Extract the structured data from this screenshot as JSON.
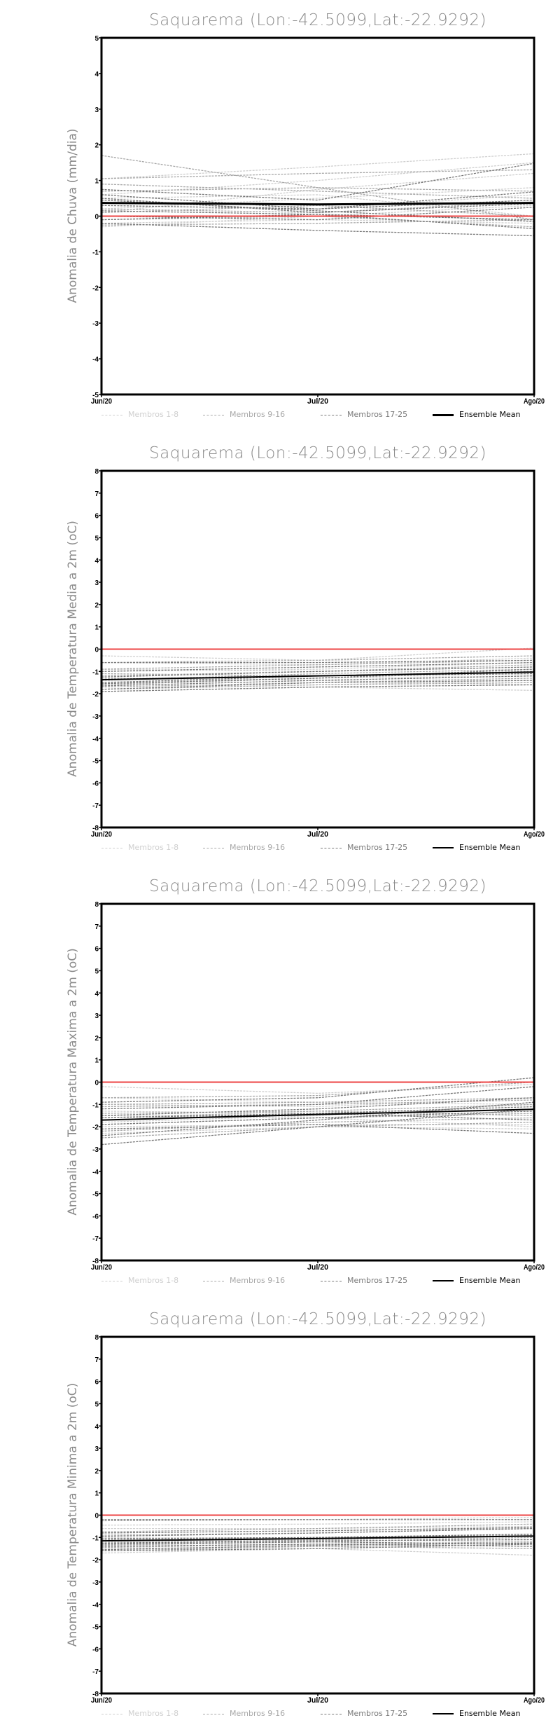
{
  "colors": {
    "members_1_8": "#cfcfcf",
    "members_9_16": "#a8a8a8",
    "members_17_25": "#787878",
    "mean": "#000000",
    "zero": "#ee4444"
  },
  "chart_data": [
    {
      "type": "line",
      "title": "Saquarema (Lon:-42.5099,Lat:-22.9292)",
      "ylabel": "Anomalia de Chuva (mm/dia)",
      "x": [
        "Jun/20",
        "Jul/20",
        "Ago/20"
      ],
      "ylim": [
        -5,
        5
      ],
      "yticks": [
        -5,
        -4,
        -3,
        -2,
        -1,
        0,
        1,
        2,
        3,
        4,
        5
      ],
      "legend": [
        "Membros 1-8",
        "Membros 9-16",
        "Membros 17-25",
        "Ensemble Mean"
      ],
      "mean_bold": true,
      "members": [
        [
          1.05,
          1.38,
          1.75
        ],
        [
          0.6,
          1.0,
          1.5
        ],
        [
          0.2,
          0.5,
          0.8
        ],
        [
          0.1,
          0.75,
          1.2
        ],
        [
          -0.3,
          0.0,
          0.3
        ],
        [
          0.3,
          0.2,
          0.6
        ],
        [
          -0.2,
          -0.1,
          -0.2
        ],
        [
          0.5,
          0.6,
          0.0
        ],
        [
          1.7,
          0.8,
          -0.1
        ],
        [
          1.05,
          1.2,
          1.3
        ],
        [
          0.9,
          0.7,
          0.5
        ],
        [
          0.7,
          0.8,
          0.7
        ],
        [
          0.2,
          0.1,
          0.4
        ],
        [
          -0.1,
          0.0,
          -0.3
        ],
        [
          0.1,
          0.3,
          0.0
        ],
        [
          -0.25,
          -0.2,
          -0.1
        ],
        [
          0.75,
          0.45,
          1.48
        ],
        [
          0.5,
          0.1,
          0.35
        ],
        [
          0.45,
          0.15,
          -0.15
        ],
        [
          0.0,
          -0.1,
          0.25
        ],
        [
          -0.2,
          -0.4,
          -0.55
        ],
        [
          0.15,
          0.05,
          -0.1
        ],
        [
          0.6,
          0.2,
          0.68
        ],
        [
          -0.1,
          0.05,
          -0.35
        ],
        [
          0.3,
          0.2,
          0.45
        ]
      ],
      "mean": [
        0.37,
        0.33,
        0.37
      ]
    },
    {
      "type": "line",
      "title": "Saquarema (Lon:-42.5099,Lat:-22.9292)",
      "ylabel": "Anomalia de Temperatura Media a 2m (oC)",
      "x": [
        "Jun/20",
        "Jul/20",
        "Ago/20"
      ],
      "ylim": [
        -8,
        8
      ],
      "yticks": [
        -8,
        -7,
        -6,
        -5,
        -4,
        -3,
        -2,
        -1,
        0,
        1,
        2,
        3,
        4,
        5,
        6,
        7,
        8
      ],
      "legend": [
        "Membros 1-8",
        "Membros 9-16",
        "Membros 17-25",
        "Ensemble Mean"
      ],
      "mean_bold": false,
      "members": [
        [
          -0.3,
          -0.5,
          0.05
        ],
        [
          -0.6,
          -0.7,
          -0.4
        ],
        [
          -1.0,
          -0.9,
          -0.6
        ],
        [
          -1.5,
          -1.3,
          -1.2
        ],
        [
          -1.8,
          -1.6,
          -1.4
        ],
        [
          -1.9,
          -1.7,
          -1.85
        ],
        [
          -1.3,
          -1.4,
          -1.6
        ],
        [
          -0.9,
          -1.0,
          -0.8
        ],
        [
          -0.6,
          -0.5,
          -0.3
        ],
        [
          -0.9,
          -0.7,
          -0.5
        ],
        [
          -1.2,
          -1.0,
          -0.7
        ],
        [
          -1.4,
          -1.1,
          -0.9
        ],
        [
          -1.6,
          -1.3,
          -1.0
        ],
        [
          -1.7,
          -1.5,
          -1.3
        ],
        [
          -1.8,
          -1.6,
          -1.5
        ],
        [
          -1.1,
          -1.2,
          -1.1
        ],
        [
          -0.6,
          -0.6,
          -0.5
        ],
        [
          -1.0,
          -0.8,
          -0.6
        ],
        [
          -1.25,
          -1.0,
          -0.8
        ],
        [
          -1.5,
          -1.2,
          -1.0
        ],
        [
          -1.65,
          -1.4,
          -1.2
        ],
        [
          -1.8,
          -1.5,
          -1.4
        ],
        [
          -1.9,
          -1.7,
          -1.6
        ],
        [
          -1.35,
          -1.2,
          -1.1
        ],
        [
          -1.55,
          -1.3,
          -0.9
        ]
      ],
      "mean": [
        -1.37,
        -1.2,
        -1.03
      ]
    },
    {
      "type": "line",
      "title": "Saquarema (Lon:-42.5099,Lat:-22.9292)",
      "ylabel": "Anomalia de Temperatura Maxima a 2m (oC)",
      "x": [
        "Jun/20",
        "Jul/20",
        "Ago/20"
      ],
      "ylim": [
        -8,
        8
      ],
      "yticks": [
        -8,
        -7,
        -6,
        -5,
        -4,
        -3,
        -2,
        -1,
        0,
        1,
        2,
        3,
        4,
        5,
        6,
        7,
        8
      ],
      "legend": [
        "Membros 1-8",
        "Membros 9-16",
        "Membros 17-25",
        "Ensemble Mean"
      ],
      "mean_bold": false,
      "members": [
        [
          -0.2,
          -0.5,
          -0.1
        ],
        [
          -0.7,
          -0.9,
          -1.0
        ],
        [
          -1.0,
          -1.1,
          -0.7
        ],
        [
          -1.5,
          -1.6,
          -2.0
        ],
        [
          -2.0,
          -1.9,
          -1.9
        ],
        [
          -2.3,
          -2.0,
          -2.1
        ],
        [
          -1.8,
          -1.5,
          -1.0
        ],
        [
          -1.3,
          -1.4,
          -1.2
        ],
        [
          -0.7,
          -0.6,
          0.0
        ],
        [
          -1.0,
          -0.9,
          -0.7
        ],
        [
          -1.1,
          -1.0,
          -0.8
        ],
        [
          -1.6,
          -1.3,
          -1.0
        ],
        [
          -1.9,
          -1.6,
          -1.4
        ],
        [
          -2.2,
          -1.8,
          -1.6
        ],
        [
          -2.5,
          -2.0,
          -1.8
        ],
        [
          -1.4,
          -1.3,
          -1.5
        ],
        [
          -0.9,
          -0.7,
          0.2
        ],
        [
          -1.2,
          -1.0,
          -0.2
        ],
        [
          -1.5,
          -1.2,
          -0.7
        ],
        [
          -1.7,
          -1.4,
          -1.1
        ],
        [
          -1.9,
          -1.6,
          -1.3
        ],
        [
          -2.1,
          -1.9,
          -2.3
        ],
        [
          -2.8,
          -2.0,
          -1.2
        ],
        [
          -2.4,
          -1.7,
          -0.9
        ],
        [
          -1.6,
          -1.4,
          -1.7
        ]
      ],
      "mean": [
        -1.7,
        -1.45,
        -1.22
      ]
    },
    {
      "type": "line",
      "title": "Saquarema (Lon:-42.5099,Lat:-22.9292)",
      "ylabel": "Anomalia de Temperatura Minima a 2m (oC)",
      "x": [
        "Jun/20",
        "Jul/20",
        "Ago/20"
      ],
      "ylim": [
        -8,
        8
      ],
      "yticks": [
        -8,
        -7,
        -6,
        -5,
        -4,
        -3,
        -2,
        -1,
        0,
        1,
        2,
        3,
        4,
        5,
        6,
        7,
        8
      ],
      "legend": [
        "Membros 1-8",
        "Membros 9-16",
        "Membros 17-25",
        "Ensemble Mean"
      ],
      "mean_bold": false,
      "members": [
        [
          -0.2,
          -0.2,
          -0.1
        ],
        [
          -0.45,
          -0.4,
          -0.3
        ],
        [
          -0.8,
          -0.7,
          -0.6
        ],
        [
          -1.2,
          -1.1,
          -1.0
        ],
        [
          -1.5,
          -1.4,
          -1.3
        ],
        [
          -1.7,
          -1.5,
          -1.8
        ],
        [
          -1.0,
          -1.1,
          -1.2
        ],
        [
          -0.6,
          -0.6,
          -0.5
        ],
        [
          -0.25,
          -0.2,
          -0.2
        ],
        [
          -0.75,
          -0.6,
          -0.4
        ],
        [
          -0.9,
          -0.8,
          -0.6
        ],
        [
          -1.3,
          -1.1,
          -0.9
        ],
        [
          -1.45,
          -1.3,
          -1.2
        ],
        [
          -1.6,
          -1.4,
          -1.5
        ],
        [
          -1.35,
          -1.2,
          -1.0
        ],
        [
          -1.1,
          -1.0,
          -0.9
        ],
        [
          -0.2,
          -0.2,
          -0.2
        ],
        [
          -0.8,
          -0.7,
          -0.55
        ],
        [
          -0.95,
          -0.8,
          -0.6
        ],
        [
          -1.25,
          -1.15,
          -1.1
        ],
        [
          -1.4,
          -1.3,
          -1.4
        ],
        [
          -1.55,
          -1.35,
          -1.25
        ],
        [
          -1.6,
          -1.5,
          -1.3
        ],
        [
          -1.3,
          -1.2,
          -1.3
        ],
        [
          -1.05,
          -1.0,
          -0.85
        ]
      ],
      "mean": [
        -1.15,
        -1.05,
        -0.94
      ]
    }
  ]
}
